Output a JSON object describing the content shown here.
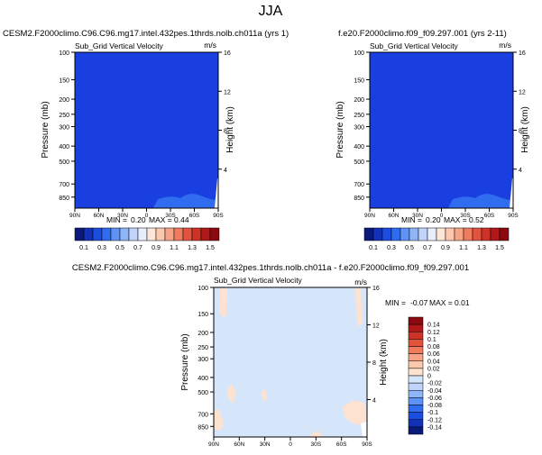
{
  "title": "JJA",
  "colors": {
    "deep_blue": "#1a3fe0",
    "light_blue_fill": "#d6e6fa",
    "peach_fill": "#fde2d0"
  },
  "chart_data": [
    {
      "type": "heatmap",
      "title": "CESM2.F2000climo.C96.C96.mg17.intel.432pes.1thrds.nolb.ch011a (yrs 1)",
      "variable": "Sub_Grid Vertical Velocity",
      "units": "m/s",
      "ylabel": "Pressure (mb)",
      "ylabel_right": "Height (km)",
      "x_ticks": [
        "90N",
        "60N",
        "30N",
        "0",
        "30S",
        "60S",
        "90S"
      ],
      "y_ticks": [
        "100",
        "150",
        "200",
        "250",
        "300",
        "400",
        "500",
        "700",
        "850"
      ],
      "y_ticks_right": [
        "16",
        "12",
        "8",
        "4"
      ],
      "min": "0.20",
      "max": "0.44",
      "min_label": "MIN =",
      "max_label": "MAX ="
    },
    {
      "type": "heatmap",
      "title": "f.e20.F2000climo.f09_f09.297.001 (yrs 2-11)",
      "variable": "Sub_Grid Vertical Velocity",
      "units": "m/s",
      "ylabel": "Pressure (mb)",
      "ylabel_right": "Height (km)",
      "x_ticks": [
        "90N",
        "60N",
        "30N",
        "0",
        "30S",
        "60S",
        "90S"
      ],
      "y_ticks": [
        "100",
        "150",
        "200",
        "250",
        "300",
        "400",
        "500",
        "700",
        "850"
      ],
      "y_ticks_right": [
        "16",
        "12",
        "8",
        "4"
      ],
      "min": "0.20",
      "max": "0.52",
      "min_label": "MIN =",
      "max_label": "MAX ="
    },
    {
      "type": "heatmap",
      "title": "CESM2.F2000climo.C96.C96.mg17.intel.432pes.1thrds.nolb.ch011a - f.e20.F2000climo.f09_f09.297.001",
      "variable": "Sub_Grid Vertical Velocity",
      "units": "m/s",
      "ylabel": "Pressure (mb)",
      "ylabel_right": "Height (km)",
      "x_ticks": [
        "90N",
        "60N",
        "30N",
        "0",
        "30S",
        "60S",
        "90S"
      ],
      "y_ticks": [
        "100",
        "150",
        "200",
        "250",
        "300",
        "400",
        "500",
        "700",
        "850"
      ],
      "y_ticks_right": [
        "16",
        "12",
        "8",
        "4"
      ],
      "min": "-0.07",
      "max": "0.01",
      "min_label": "MIN =",
      "max_label": "MAX ="
    }
  ],
  "colorbar_top": {
    "labels": [
      "0.1",
      "0.3",
      "0.5",
      "0.7",
      "0.9",
      "1.1",
      "1.3",
      "1.5"
    ],
    "colors": [
      "#0a1a7a",
      "#1230b8",
      "#1a4ee0",
      "#2f6cf0",
      "#5f92f5",
      "#8fb4f8",
      "#bfd3fb",
      "#e6eefc",
      "#fde6d8",
      "#fbc8ae",
      "#f6a488",
      "#ef7b5e",
      "#e2533e",
      "#cc3226",
      "#b0181a",
      "#8a0a10"
    ]
  },
  "colorbar_diff": {
    "labels": [
      "0.14",
      "0.12",
      "0.1",
      "0.08",
      "0.06",
      "0.04",
      "0.02",
      "0",
      "-0.02",
      "-0.04",
      "-0.06",
      "-0.08",
      "-0.1",
      "-0.12",
      "-0.14"
    ],
    "colors": [
      "#8a0a10",
      "#b0181a",
      "#cc3226",
      "#e2533e",
      "#ef7b5e",
      "#f6a488",
      "#fbc8ae",
      "#fde2d0",
      "#d6e6fa",
      "#bfd3fb",
      "#8fb4f8",
      "#5f92f5",
      "#2f6cf0",
      "#1a4ee0",
      "#1230b8",
      "#0a1a7a"
    ]
  }
}
